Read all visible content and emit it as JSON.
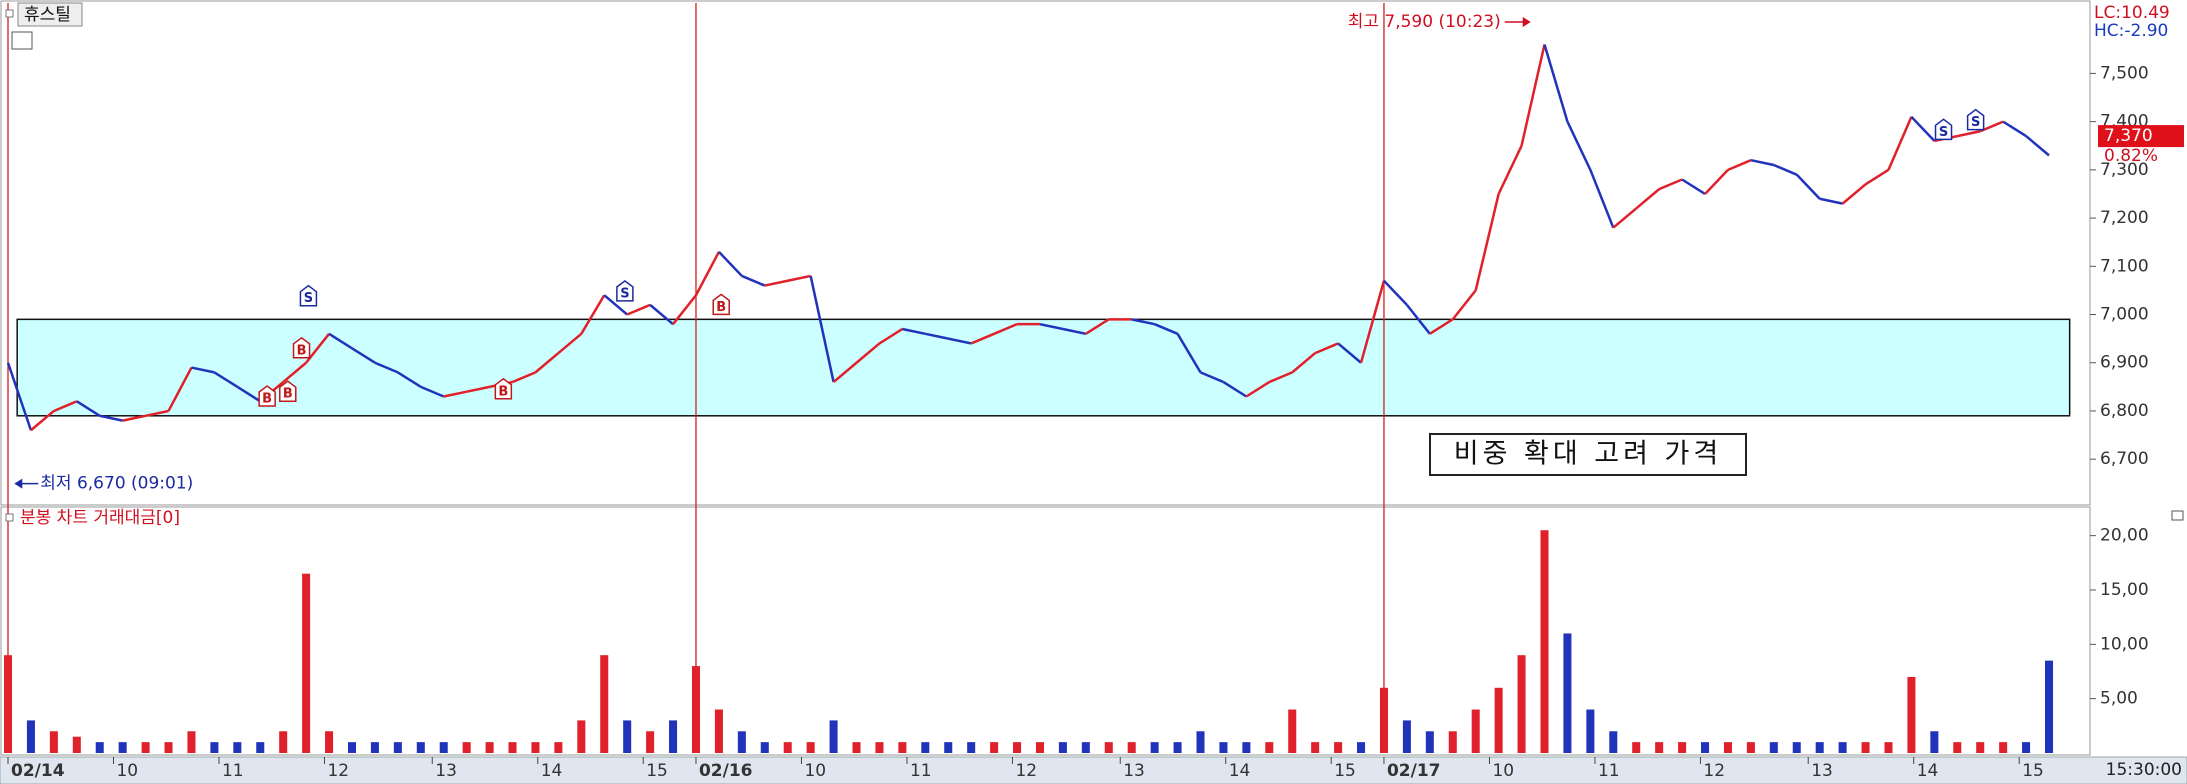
{
  "title": "휴스틸",
  "lc": "LC:10.49",
  "hc": "HC:-2.90",
  "current": {
    "value": 7370,
    "label": "7,370"
  },
  "change": "0.82%",
  "callout": "비중 확대 고려 가격",
  "volume_title": "분봉 차트 거래대금[0]",
  "end_time": "15:30:00",
  "chart_data": [
    {
      "type": "line",
      "values": [
        6900,
        6760,
        6800,
        6820,
        6790,
        6780,
        6790,
        6800,
        6890,
        6880,
        6850,
        6820,
        6860,
        6900,
        6960,
        6930,
        6900,
        6880,
        6850,
        6830,
        6840,
        6850,
        6860,
        6880,
        6920,
        6960,
        7040,
        7000,
        7020,
        6980,
        7040,
        7130,
        7080,
        7060,
        7070,
        7080,
        6860,
        6900,
        6940,
        6970,
        6960,
        6950,
        6940,
        6960,
        6980,
        6980,
        6970,
        6960,
        6990,
        6990,
        6980,
        6960,
        6880,
        6860,
        6830,
        6860,
        6880,
        6920,
        6940,
        6900,
        7070,
        7020,
        6960,
        6990,
        7050,
        7250,
        7350,
        7560,
        7400,
        7300,
        7180,
        7220,
        7260,
        7280,
        7250,
        7300,
        7320,
        7310,
        7290,
        7240,
        7230,
        7270,
        7300,
        7410,
        7360,
        7370,
        7380,
        7400,
        7370,
        7330
      ],
      "up_color": "#e0202a",
      "down_color": "#2233bb",
      "xlim": [
        0,
        90.7
      ],
      "ylim": [
        6605,
        7646
      ],
      "yticks": [
        {
          "value": 6700,
          "label": "6,700"
        },
        {
          "value": 6800,
          "label": "6,800"
        },
        {
          "value": 6900,
          "label": "6,900"
        },
        {
          "value": 7000,
          "label": "7,000"
        },
        {
          "value": 7100,
          "label": "7,100"
        },
        {
          "value": 7200,
          "label": "7,200"
        },
        {
          "value": 7300,
          "label": "7,300"
        },
        {
          "value": 7400,
          "label": "7,400"
        },
        {
          "value": 7500,
          "label": "7,500"
        }
      ],
      "zone": {
        "x": [
          0.4,
          89.9
        ],
        "y": [
          6790,
          6990
        ],
        "color": "#ccffff"
      },
      "annotations": [
        {
          "text": "최고 7,590 (10:23)",
          "x": 66.4,
          "value": 7590,
          "color": "#d01020"
        },
        {
          "text": "최저 6,670 (09:01)",
          "x": 0.1,
          "value": 6670,
          "color": "#1a2aa0"
        }
      ],
      "signals": [
        {
          "label": "B",
          "x": 11.3,
          "value": 6860
        },
        {
          "label": "B",
          "x": 12.2,
          "value": 6870
        },
        {
          "label": "B",
          "x": 12.8,
          "value": 6960
        },
        {
          "label": "S",
          "x": 13.1,
          "value": 7010
        },
        {
          "label": "B",
          "x": 21.6,
          "value": 6875
        },
        {
          "label": "S",
          "x": 26.9,
          "value": 7020
        },
        {
          "label": "B",
          "x": 31.1,
          "value": 7050
        },
        {
          "label": "S",
          "x": 84.4,
          "value": 7355
        },
        {
          "label": "S",
          "x": 85.8,
          "value": 7375
        }
      ]
    },
    {
      "type": "bar",
      "values": [
        9,
        3,
        2,
        1.5,
        1,
        1,
        1,
        1,
        2,
        1,
        1,
        1,
        2,
        16.5,
        2,
        1,
        1,
        1,
        1,
        1,
        1,
        1,
        1,
        1,
        1,
        3,
        9,
        3,
        2,
        3,
        8,
        4,
        2,
        1,
        1,
        1,
        3,
        1,
        1,
        1,
        1,
        1,
        1,
        1,
        1,
        1,
        1,
        1,
        1,
        1,
        1,
        1,
        2,
        1,
        1,
        1,
        4,
        1,
        1,
        1,
        6,
        3,
        2,
        2,
        4,
        6,
        9,
        20.5,
        11,
        4,
        2,
        1,
        1,
        1,
        1,
        1,
        1,
        1,
        1,
        1,
        1,
        1,
        1,
        7,
        2,
        1,
        1,
        1,
        1,
        8.5
      ],
      "xlim": [
        0,
        90.7
      ],
      "ylim": [
        0,
        21.9
      ],
      "yticks": [
        {
          "value": 5,
          "label": "5,00"
        },
        {
          "value": 10,
          "label": "10,00"
        },
        {
          "value": 15,
          "label": "15,00"
        },
        {
          "value": 20,
          "label": "20,00"
        }
      ],
      "xticks": [
        {
          "value": 0,
          "label": "02/14"
        },
        {
          "value": 4.6,
          "label": "10"
        },
        {
          "value": 9.2,
          "label": "11"
        },
        {
          "value": 13.8,
          "label": "12"
        },
        {
          "value": 18.5,
          "label": "13"
        },
        {
          "value": 23.1,
          "label": "14"
        },
        {
          "value": 27.7,
          "label": "15"
        },
        {
          "value": 30,
          "label": "02/16"
        },
        {
          "value": 34.6,
          "label": "10"
        },
        {
          "value": 39.2,
          "label": "11"
        },
        {
          "value": 43.8,
          "label": "12"
        },
        {
          "value": 48.5,
          "label": "13"
        },
        {
          "value": 53.1,
          "label": "14"
        },
        {
          "value": 57.7,
          "label": "15"
        },
        {
          "value": 60,
          "label": "02/17"
        },
        {
          "value": 64.6,
          "label": "10"
        },
        {
          "value": 69.2,
          "label": "11"
        },
        {
          "value": 73.8,
          "label": "12"
        },
        {
          "value": 78.5,
          "label": "13"
        },
        {
          "value": 83.1,
          "label": "14"
        },
        {
          "value": 87.7,
          "label": "15"
        }
      ],
      "day_line_color": "#d02020"
    }
  ]
}
